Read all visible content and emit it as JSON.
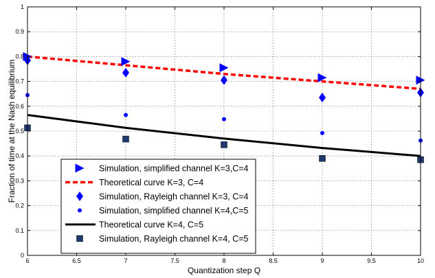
{
  "chart_data": {
    "type": "line",
    "title": "",
    "xlabel": "Quantization step Q",
    "ylabel": "Fraction of time at the Nash equilibrium",
    "xlim": [
      6,
      10
    ],
    "ylim": [
      0,
      1
    ],
    "xticks": [
      6,
      6.5,
      7,
      7.5,
      8,
      8.5,
      9,
      9.5,
      10
    ],
    "xtick_labels": [
      "6",
      "6.5",
      "7",
      "7.5",
      "8",
      "8.5",
      "9",
      "9.5",
      "10"
    ],
    "yticks": [
      0,
      0.1,
      0.2,
      0.3,
      0.4,
      0.5,
      0.6,
      0.7,
      0.8,
      0.9,
      1
    ],
    "ytick_labels": [
      "0",
      "0.1",
      "0.2",
      "0.3",
      "0.4",
      "0.5",
      "0.6",
      "0.7",
      "0.8",
      "0.9",
      "1"
    ],
    "grid": true,
    "legend_position": "bottom-left",
    "series": [
      {
        "name": "Simulation, simplified channel K=3,C=4",
        "kind": "marker",
        "marker": "triangle-right",
        "color": "#0000ff",
        "x": [
          6,
          7,
          8,
          9,
          10
        ],
        "y": [
          0.8,
          0.78,
          0.755,
          0.715,
          0.705
        ]
      },
      {
        "name": "Theoretical curve K=3, C=4",
        "kind": "line",
        "style": "dashed",
        "color": "#ff0000",
        "x": [
          6,
          7,
          8,
          9,
          10
        ],
        "y": [
          0.8,
          0.765,
          0.73,
          0.7,
          0.67
        ]
      },
      {
        "name": "Simulation, Rayleigh channel K=3, C=4",
        "kind": "marker",
        "marker": "diamond",
        "color": "#0000ff",
        "x": [
          6,
          7,
          8,
          9,
          10
        ],
        "y": [
          0.785,
          0.735,
          0.705,
          0.635,
          0.655
        ]
      },
      {
        "name": "Simulation, simplified channel K=4,C=5",
        "kind": "marker",
        "marker": "dot",
        "color": "#0000ff",
        "x": [
          6,
          7,
          8,
          9,
          10
        ],
        "y": [
          0.645,
          0.565,
          0.548,
          0.492,
          0.462
        ]
      },
      {
        "name": "Theoretical curve K=4, C=5",
        "kind": "line",
        "style": "solid",
        "color": "#000000",
        "x": [
          6,
          7,
          8,
          9,
          10
        ],
        "y": [
          0.565,
          0.513,
          0.47,
          0.432,
          0.4
        ]
      },
      {
        "name": "Simulation, Rayleigh channel K=4, C=5",
        "kind": "marker",
        "marker": "square",
        "color": "#1f3a6e",
        "x": [
          6,
          7,
          8,
          9,
          10
        ],
        "y": [
          0.513,
          0.468,
          0.445,
          0.39,
          0.385
        ]
      }
    ]
  }
}
